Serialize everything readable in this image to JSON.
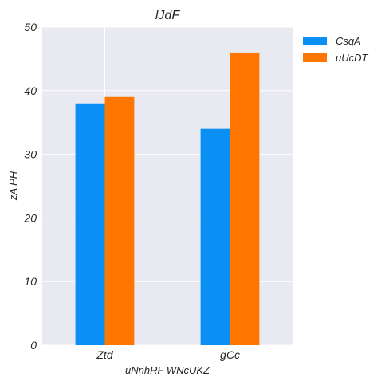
{
  "chart_data": {
    "type": "bar",
    "title": "lJdF",
    "xlabel": "uNnhRF  WNcUKZ",
    "ylabel": "zA PH",
    "categories": [
      "Ztd",
      "gCc"
    ],
    "series": [
      {
        "name": "CsqA",
        "values": [
          38,
          34
        ],
        "color": "#0a8ff5"
      },
      {
        "name": "uUcDT",
        "values": [
          39,
          46
        ],
        "color": "#ff7700"
      }
    ],
    "ylim": [
      0,
      50
    ],
    "yticks": [
      0,
      10,
      20,
      30,
      40,
      50
    ],
    "grid": true,
    "legend_position": "outside-top-right",
    "background": "#e8e9f1"
  }
}
